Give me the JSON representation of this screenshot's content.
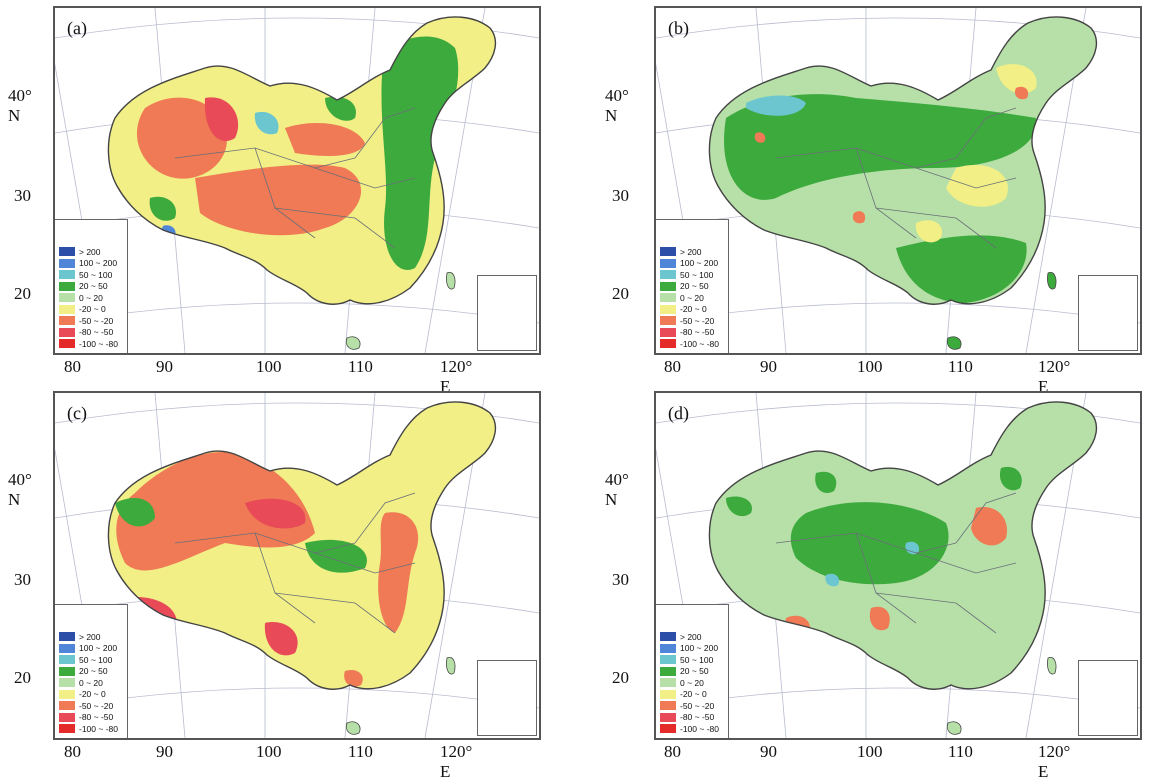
{
  "panels": [
    {
      "label": "(a)",
      "pattern": "a"
    },
    {
      "label": "(b)",
      "pattern": "b"
    },
    {
      "label": "(c)",
      "pattern": "c"
    },
    {
      "label": "(d)",
      "pattern": "d"
    }
  ],
  "lat_labels": [
    "40° N",
    "30",
    "20"
  ],
  "lon_labels": [
    "80",
    "90",
    "100",
    "110",
    "120° E"
  ],
  "legend": [
    {
      "label": "> 200",
      "color": "#2b4fa8"
    },
    {
      "label": "100 ~ 200",
      "color": "#4f86d8"
    },
    {
      "label": "50 ~ 100",
      "color": "#6cc6d0"
    },
    {
      "label": "20 ~ 50",
      "color": "#3daa3d"
    },
    {
      "label": "0 ~ 20",
      "color": "#b6e0a8"
    },
    {
      "label": "-20 ~ 0",
      "color": "#f1ef86"
    },
    {
      "label": "-50 ~ -20",
      "color": "#ef7a55"
    },
    {
      "label": "-80 ~ -50",
      "color": "#e84a58"
    },
    {
      "label": "-100 ~ -80",
      "color": "#e52a2a"
    }
  ]
}
